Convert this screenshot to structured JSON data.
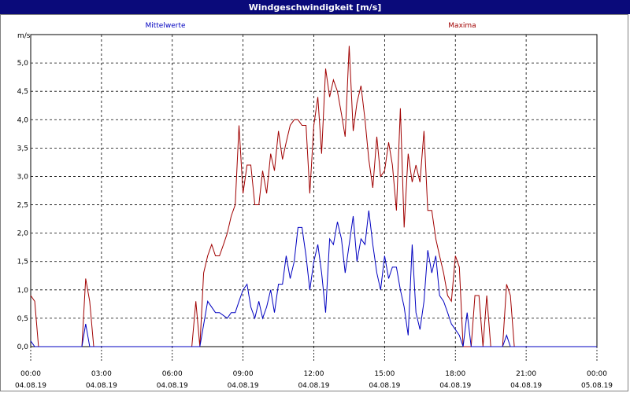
{
  "window": {
    "title": "Windgeschwindigkeit [m/s]"
  },
  "colors": {
    "mean": "#0000c0",
    "max": "#a00000",
    "title_bg": "#0a0a7a"
  },
  "chart_data": {
    "type": "line",
    "title": "Windgeschwindigkeit [m/s]",
    "ylabel": "m/s",
    "xlabel": "",
    "ylim": [
      0,
      5.5
    ],
    "yticks": [
      "0,0",
      "0,5",
      "1,0",
      "1,5",
      "2,0",
      "2,5",
      "3,0",
      "3,5",
      "4,0",
      "4,5",
      "5,0"
    ],
    "xlim_hours": [
      0,
      24
    ],
    "xticks": [
      {
        "time": "00:00",
        "date": "04.08.19"
      },
      {
        "time": "03:00",
        "date": "04.08.19"
      },
      {
        "time": "06:00",
        "date": "04.08.19"
      },
      {
        "time": "09:00",
        "date": "04.08.19"
      },
      {
        "time": "12:00",
        "date": "04.08.19"
      },
      {
        "time": "15:00",
        "date": "04.08.19"
      },
      {
        "time": "18:00",
        "date": "04.08.19"
      },
      {
        "time": "21:00",
        "date": "04.08.19"
      },
      {
        "time": "00:00",
        "date": "05.08.19"
      }
    ],
    "grid": true,
    "series": [
      {
        "name": "Mittelwerte",
        "color": "#0000c0",
        "points": [
          [
            0,
            0.1
          ],
          [
            0.17,
            0
          ],
          [
            2.17,
            0
          ],
          [
            2.33,
            0.4
          ],
          [
            2.5,
            0
          ],
          [
            6.83,
            0
          ],
          [
            7.17,
            0
          ],
          [
            7.5,
            0.8
          ],
          [
            7.83,
            0.6
          ],
          [
            8.0,
            0.6
          ],
          [
            8.33,
            0.5
          ],
          [
            8.5,
            0.6
          ],
          [
            8.67,
            0.6
          ],
          [
            8.83,
            0.8
          ],
          [
            9.0,
            1.0
          ],
          [
            9.17,
            1.1
          ],
          [
            9.33,
            0.7
          ],
          [
            9.5,
            0.5
          ],
          [
            9.67,
            0.8
          ],
          [
            9.83,
            0.5
          ],
          [
            10.0,
            0.7
          ],
          [
            10.17,
            1.0
          ],
          [
            10.33,
            0.6
          ],
          [
            10.5,
            1.1
          ],
          [
            10.67,
            1.1
          ],
          [
            10.83,
            1.6
          ],
          [
            11.0,
            1.2
          ],
          [
            11.17,
            1.5
          ],
          [
            11.33,
            2.1
          ],
          [
            11.5,
            2.1
          ],
          [
            11.67,
            1.6
          ],
          [
            11.83,
            1.0
          ],
          [
            12.0,
            1.5
          ],
          [
            12.17,
            1.8
          ],
          [
            12.33,
            1.3
          ],
          [
            12.5,
            0.6
          ],
          [
            12.67,
            1.9
          ],
          [
            12.83,
            1.8
          ],
          [
            13.0,
            2.2
          ],
          [
            13.17,
            1.9
          ],
          [
            13.33,
            1.3
          ],
          [
            13.5,
            1.8
          ],
          [
            13.67,
            2.3
          ],
          [
            13.83,
            1.5
          ],
          [
            14.0,
            1.9
          ],
          [
            14.17,
            1.8
          ],
          [
            14.33,
            2.4
          ],
          [
            14.5,
            1.8
          ],
          [
            14.67,
            1.3
          ],
          [
            14.83,
            1.0
          ],
          [
            15.0,
            1.6
          ],
          [
            15.17,
            1.2
          ],
          [
            15.33,
            1.4
          ],
          [
            15.5,
            1.4
          ],
          [
            15.67,
            1.0
          ],
          [
            15.83,
            0.7
          ],
          [
            16.0,
            0.2
          ],
          [
            16.17,
            1.8
          ],
          [
            16.33,
            0.6
          ],
          [
            16.5,
            0.3
          ],
          [
            16.67,
            0.8
          ],
          [
            16.83,
            1.7
          ],
          [
            17.0,
            1.3
          ],
          [
            17.17,
            1.6
          ],
          [
            17.33,
            0.9
          ],
          [
            17.5,
            0.8
          ],
          [
            17.67,
            0.6
          ],
          [
            17.83,
            0.4
          ],
          [
            18.0,
            0.3
          ],
          [
            18.17,
            0.2
          ],
          [
            18.33,
            0
          ],
          [
            18.5,
            0.6
          ],
          [
            18.67,
            0
          ],
          [
            20.0,
            0
          ],
          [
            20.17,
            0.2
          ],
          [
            20.33,
            0
          ],
          [
            24.0,
            0
          ]
        ]
      },
      {
        "name": "Maxima",
        "color": "#a00000",
        "points": [
          [
            0,
            0.9
          ],
          [
            0.17,
            0.8
          ],
          [
            0.33,
            0
          ],
          [
            2.17,
            0
          ],
          [
            2.33,
            1.2
          ],
          [
            2.5,
            0.8
          ],
          [
            2.67,
            0
          ],
          [
            6.83,
            0
          ],
          [
            7.0,
            0.8
          ],
          [
            7.17,
            0
          ],
          [
            7.33,
            1.3
          ],
          [
            7.5,
            1.6
          ],
          [
            7.67,
            1.8
          ],
          [
            7.83,
            1.6
          ],
          [
            8.0,
            1.6
          ],
          [
            8.17,
            1.8
          ],
          [
            8.33,
            2.0
          ],
          [
            8.5,
            2.3
          ],
          [
            8.67,
            2.5
          ],
          [
            8.83,
            3.9
          ],
          [
            9.0,
            2.7
          ],
          [
            9.17,
            3.2
          ],
          [
            9.33,
            3.2
          ],
          [
            9.5,
            2.5
          ],
          [
            9.67,
            2.5
          ],
          [
            9.83,
            3.1
          ],
          [
            10.0,
            2.7
          ],
          [
            10.17,
            3.4
          ],
          [
            10.33,
            3.1
          ],
          [
            10.5,
            3.8
          ],
          [
            10.67,
            3.3
          ],
          [
            10.83,
            3.6
          ],
          [
            11.0,
            3.9
          ],
          [
            11.17,
            4.0
          ],
          [
            11.33,
            4.0
          ],
          [
            11.5,
            3.9
          ],
          [
            11.67,
            3.9
          ],
          [
            11.83,
            2.7
          ],
          [
            12.0,
            3.9
          ],
          [
            12.17,
            4.4
          ],
          [
            12.33,
            3.4
          ],
          [
            12.5,
            4.9
          ],
          [
            12.67,
            4.4
          ],
          [
            12.83,
            4.7
          ],
          [
            13.0,
            4.5
          ],
          [
            13.17,
            4.1
          ],
          [
            13.33,
            3.7
          ],
          [
            13.5,
            5.3
          ],
          [
            13.67,
            3.8
          ],
          [
            13.83,
            4.3
          ],
          [
            14.0,
            4.6
          ],
          [
            14.17,
            4.0
          ],
          [
            14.33,
            3.3
          ],
          [
            14.5,
            2.8
          ],
          [
            14.67,
            3.7
          ],
          [
            14.83,
            3.0
          ],
          [
            15.0,
            3.1
          ],
          [
            15.17,
            3.6
          ],
          [
            15.33,
            3.2
          ],
          [
            15.5,
            2.4
          ],
          [
            15.67,
            4.2
          ],
          [
            15.83,
            2.1
          ],
          [
            16.0,
            3.4
          ],
          [
            16.17,
            2.9
          ],
          [
            16.33,
            3.2
          ],
          [
            16.5,
            2.9
          ],
          [
            16.67,
            3.8
          ],
          [
            16.83,
            2.4
          ],
          [
            17.0,
            2.4
          ],
          [
            17.17,
            1.9
          ],
          [
            17.33,
            1.6
          ],
          [
            17.5,
            1.3
          ],
          [
            17.67,
            0.9
          ],
          [
            17.83,
            0.8
          ],
          [
            18.0,
            1.6
          ],
          [
            18.17,
            1.4
          ],
          [
            18.33,
            0
          ],
          [
            18.67,
            0
          ],
          [
            18.83,
            0.9
          ],
          [
            19.0,
            0.9
          ],
          [
            19.17,
            0
          ],
          [
            19.33,
            0.9
          ],
          [
            19.5,
            0
          ],
          [
            20.0,
            0
          ],
          [
            20.17,
            1.1
          ],
          [
            20.33,
            0.9
          ],
          [
            20.5,
            0
          ],
          [
            24.0,
            0
          ]
        ]
      }
    ]
  }
}
